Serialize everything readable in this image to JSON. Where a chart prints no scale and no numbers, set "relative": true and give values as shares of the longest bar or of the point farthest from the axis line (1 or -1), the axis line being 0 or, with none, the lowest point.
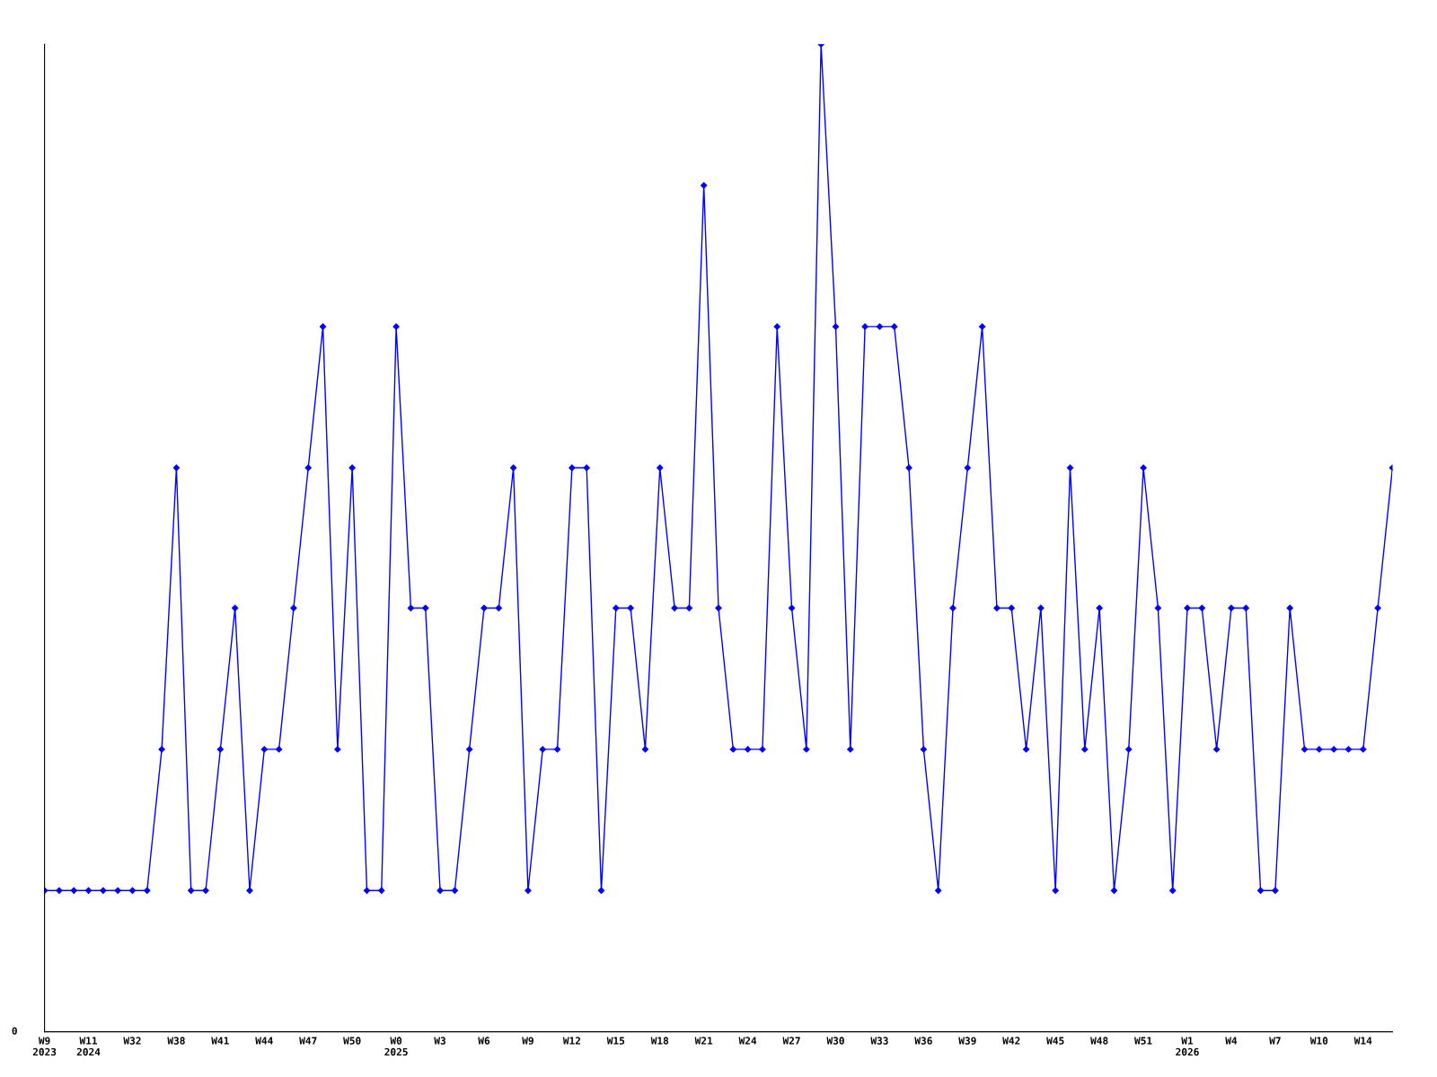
{
  "chart_data": {
    "type": "line",
    "relative": true,
    "marker": "diamond",
    "line_style": "solid",
    "grid": false,
    "legend": false,
    "categories": [
      "W9\n2023",
      null,
      null,
      "W11\n2024",
      null,
      null,
      "W32",
      null,
      null,
      "W38",
      null,
      null,
      "W41",
      null,
      null,
      "W44",
      null,
      null,
      "W47",
      null,
      null,
      "W50",
      null,
      null,
      "W0\n2025",
      null,
      null,
      "W3",
      null,
      null,
      "W6",
      null,
      null,
      "W9",
      null,
      null,
      "W12",
      null,
      null,
      "W15",
      null,
      null,
      "W18",
      null,
      null,
      "W21",
      null,
      null,
      "W24",
      null,
      null,
      "W27",
      null,
      null,
      "W30",
      null,
      null,
      "W33",
      null,
      null,
      "W36",
      null,
      null,
      "W39",
      null,
      null,
      "W42",
      null,
      null,
      "W45",
      null,
      null,
      "W48",
      null,
      null,
      "W51",
      null,
      null,
      "W1\n2026",
      null,
      null,
      "W4",
      null,
      null,
      "W7",
      null,
      null,
      "W10",
      null,
      null,
      "W14",
      null,
      null
    ],
    "series": [
      {
        "color": "#0000ff",
        "values": [
          0.143,
          0.143,
          0.143,
          0.143,
          0.143,
          0.143,
          0.143,
          0.143,
          0.286,
          0.571,
          0.143,
          0.143,
          0.286,
          0.429,
          0.143,
          0.286,
          0.286,
          0.429,
          0.571,
          0.714,
          0.286,
          0.571,
          0.143,
          0.143,
          0.714,
          0.429,
          0.429,
          0.143,
          0.143,
          0.286,
          0.429,
          0.429,
          0.571,
          0.143,
          0.286,
          0.286,
          0.571,
          0.571,
          0.143,
          0.429,
          0.429,
          0.286,
          0.571,
          0.429,
          0.429,
          0.857,
          0.429,
          0.286,
          0.286,
          0.286,
          0.714,
          0.429,
          0.286,
          1,
          0.714,
          0.286,
          0.714,
          0.714,
          0.714,
          0.571,
          0.286,
          0.143,
          0.429,
          0.571,
          0.714,
          0.429,
          0.429,
          0.286,
          0.429,
          0.143,
          0.571,
          0.286,
          0.429,
          0.143,
          0.286,
          0.571,
          0.429,
          0.143,
          0.429,
          0.429,
          0.286,
          0.429,
          0.429,
          0.143,
          0.143,
          0.429,
          0.286,
          0.286,
          0.286,
          0.286,
          0.286,
          0.429,
          0.571
        ]
      }
    ],
    "annotations": [
      "0"
    ]
  }
}
